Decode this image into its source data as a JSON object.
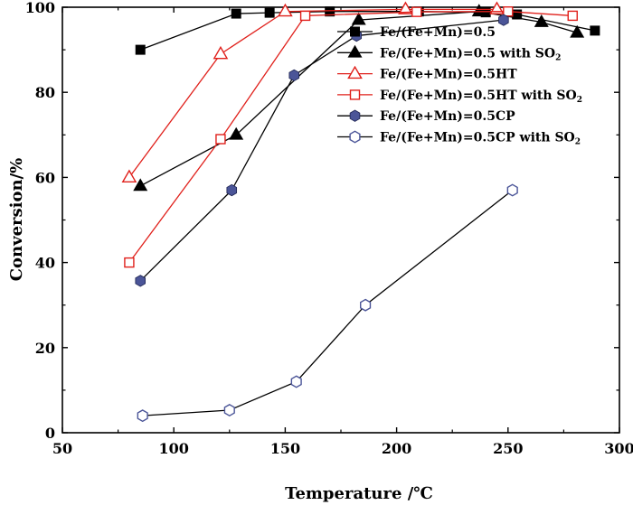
{
  "chart_data": {
    "type": "line",
    "xlabel": "Temperature /℃",
    "ylabel": "Conversion/%",
    "xlim": [
      50,
      300
    ],
    "ylim": [
      0,
      100
    ],
    "xticks": [
      50,
      100,
      150,
      200,
      250,
      300
    ],
    "yticks": [
      0,
      20,
      40,
      60,
      80,
      100
    ],
    "grid": false,
    "legend_position": "top-right",
    "series": [
      {
        "name": "Fe/(Fe+Mn)=0.5",
        "name_parts": [
          "Fe/(Fe+Mn)=0.5"
        ],
        "color": "#000000",
        "marker": "square-filled",
        "points": [
          [
            85,
            90
          ],
          [
            128,
            98.5
          ],
          [
            143,
            98.7
          ],
          [
            170,
            99
          ],
          [
            210,
            99
          ],
          [
            240,
            98.8
          ],
          [
            254,
            98.3
          ],
          [
            289,
            94.5
          ]
        ]
      },
      {
        "name": "Fe/(Fe+Mn)=0.5 with SO₂",
        "name_parts": [
          "Fe/(Fe+Mn)=0.5 with SO",
          "2"
        ],
        "color": "#000000",
        "marker": "triangle-filled",
        "points": [
          [
            85,
            58
          ],
          [
            128,
            70
          ],
          [
            183,
            97
          ],
          [
            237,
            99
          ],
          [
            265,
            96.5
          ],
          [
            281,
            94
          ]
        ]
      },
      {
        "name": "Fe/(Fe+Mn)=0.5HT",
        "name_parts": [
          "Fe/(Fe+Mn)=0.5HT"
        ],
        "color": "#e0201b",
        "marker": "triangle-open",
        "points": [
          [
            80,
            60
          ],
          [
            121,
            89
          ],
          [
            150,
            99
          ],
          [
            204,
            99.5
          ],
          [
            245,
            99.5
          ]
        ]
      },
      {
        "name": "Fe/(Fe+Mn)=0.5HT with SO₂",
        "name_parts": [
          "Fe/(Fe+Mn)=0.5HT with SO",
          "2"
        ],
        "color": "#e0201b",
        "marker": "square-open",
        "points": [
          [
            80,
            40
          ],
          [
            121,
            69
          ],
          [
            159,
            98
          ],
          [
            209,
            98.9
          ],
          [
            250,
            99
          ],
          [
            279,
            98
          ]
        ]
      },
      {
        "name": "Fe/(Fe+Mn)=0.5CP",
        "name_parts": [
          "Fe/(Fe+Mn)=0.5CP"
        ],
        "color": "#000000",
        "marker_color": "#4b5598",
        "marker": "hexagon-filled",
        "points": [
          [
            85,
            35.7
          ],
          [
            126,
            57
          ],
          [
            154,
            84
          ],
          [
            182,
            93.3
          ],
          [
            248,
            97
          ]
        ]
      },
      {
        "name": "Fe/(Fe+Mn)=0.5CP with SO₂",
        "name_parts": [
          "Fe/(Fe+Mn)=0.5CP with SO",
          "2"
        ],
        "color": "#000000",
        "marker_color": "#4b5598",
        "marker": "hexagon-open",
        "points": [
          [
            86,
            4
          ],
          [
            125,
            5.3
          ],
          [
            155,
            12
          ],
          [
            186,
            30
          ],
          [
            252,
            57
          ]
        ]
      }
    ]
  }
}
